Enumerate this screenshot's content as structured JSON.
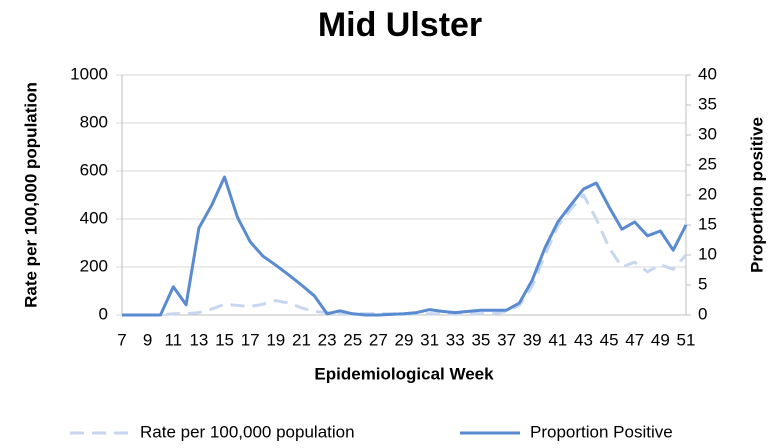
{
  "chart_data": {
    "type": "line",
    "title": "Mid Ulster",
    "x_label": "Epidemiological Week",
    "y_label": "Rate per 100,000 population",
    "y2_label": "Proportion positive",
    "categories": [
      "7",
      null,
      "9",
      null,
      "11",
      null,
      "13",
      null,
      "15",
      null,
      "17",
      null,
      "19",
      null,
      "21",
      null,
      "23",
      null,
      "25",
      null,
      "27",
      null,
      "29",
      null,
      "31",
      null,
      "33",
      null,
      "35",
      null,
      "37",
      null,
      "39",
      null,
      "41",
      null,
      "43",
      null,
      "45",
      null,
      "47",
      null,
      "49",
      null,
      "51"
    ],
    "series": [
      {
        "name": "Rate per 100,000 population",
        "color": "#c6d7ef",
        "dash": true,
        "values": [
          0,
          0,
          0,
          0,
          5,
          5,
          10,
          25,
          45,
          40,
          35,
          45,
          60,
          50,
          30,
          15,
          10,
          5,
          5,
          5,
          5,
          5,
          5,
          5,
          5,
          5,
          5,
          5,
          5,
          5,
          15,
          40,
          120,
          250,
          370,
          440,
          500,
          400,
          280,
          200,
          220,
          180,
          210,
          190,
          250
        ]
      },
      {
        "name": "Proportion Positive",
        "color": "#5a8ad0",
        "dash": false,
        "axis": "y2",
        "values": [
          0,
          0,
          0,
          0,
          4.7,
          1.7,
          14.5,
          18.3,
          23,
          16.3,
          12.2,
          9.8,
          8.3,
          6.7,
          5,
          3.2,
          0.2,
          0.7,
          0.2,
          0,
          0,
          0.1,
          0.2,
          0.4,
          0.9,
          0.6,
          0.4,
          0.6,
          0.8,
          0.8,
          0.8,
          2,
          5.8,
          11.2,
          15.5,
          18.3,
          21,
          22,
          18,
          14.3,
          15.5,
          13.2,
          14,
          10.8,
          15
        ]
      }
    ],
    "ylim": [
      0,
      1000
    ],
    "yticks": [
      0,
      200,
      400,
      600,
      800,
      1000
    ],
    "y2lim": [
      0,
      40
    ],
    "y2ticks": [
      0,
      5,
      10,
      15,
      20,
      25,
      30,
      35,
      40
    ],
    "grid": true,
    "legend": "bottom"
  }
}
